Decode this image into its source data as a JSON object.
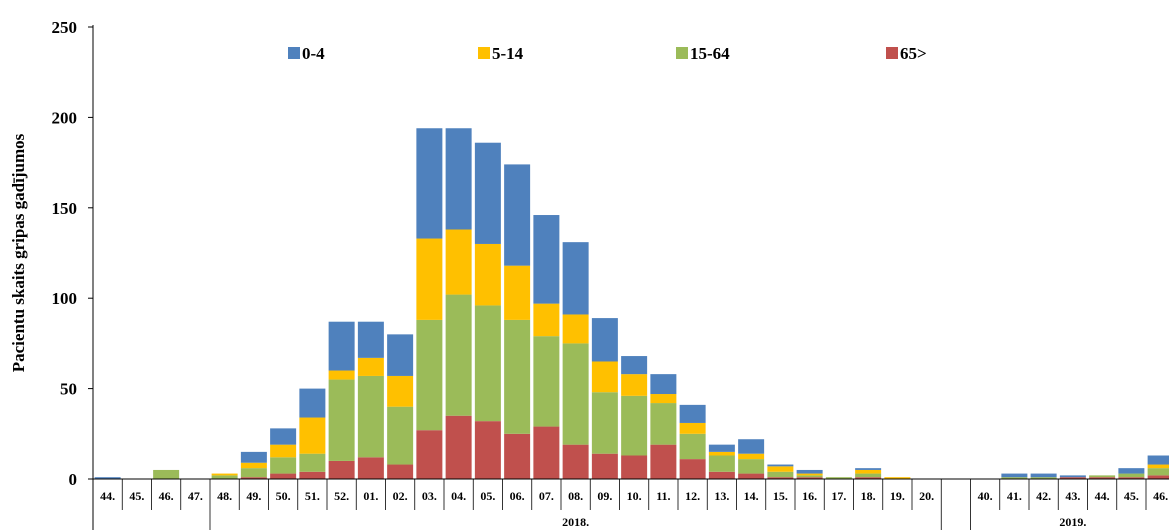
{
  "chart_data": {
    "type": "bar",
    "stacked": true,
    "title": "",
    "xlabel": "",
    "ylabel": "Pacientu skaits gripas gadījumos",
    "ylim": [
      0,
      250
    ],
    "yticks": [
      0,
      50,
      100,
      150,
      200,
      250
    ],
    "grid": false,
    "legend_position": "top",
    "categories": [
      "44.",
      "45.",
      "46.",
      "47.",
      "48.",
      "49.",
      "50.",
      "51.",
      "52.",
      "01.",
      "02.",
      "03.",
      "04.",
      "05.",
      "06.",
      "07.",
      "08.",
      "09.",
      "10.",
      "11.",
      "12.",
      "13.",
      "14.",
      "15.",
      "16.",
      "17.",
      "18.",
      "19.",
      "20.",
      "",
      "40.",
      "41.",
      "42.",
      "43.",
      "44.",
      "45.",
      "46."
    ],
    "year_groups": [
      {
        "label": "",
        "start": 0,
        "end": 3
      },
      {
        "label": "2018.",
        "start": 4,
        "end": 28
      },
      {
        "label": "2019.",
        "start": 30,
        "end": 36
      }
    ],
    "series": [
      {
        "name": "65>",
        "color": "#c0504d",
        "values": [
          0,
          0,
          0,
          0,
          0,
          1,
          3,
          4,
          10,
          12,
          8,
          27,
          35,
          32,
          25,
          29,
          19,
          14,
          13,
          19,
          11,
          4,
          3,
          1,
          1,
          0,
          1,
          0,
          0,
          0,
          0,
          0,
          0,
          1,
          1,
          1,
          2
        ]
      },
      {
        "name": "15-64",
        "color": "#9bbb59",
        "values": [
          0,
          0,
          5,
          0,
          2,
          5,
          9,
          10,
          45,
          45,
          32,
          61,
          67,
          64,
          63,
          50,
          56,
          34,
          33,
          23,
          14,
          9,
          8,
          3,
          1,
          1,
          2,
          0,
          0,
          0,
          0,
          1,
          1,
          0,
          1,
          2,
          4
        ]
      },
      {
        "name": "5-14",
        "color": "#ffc000",
        "values": [
          0,
          0,
          0,
          0,
          1,
          3,
          7,
          20,
          5,
          10,
          17,
          45,
          36,
          34,
          30,
          18,
          16,
          17,
          12,
          5,
          6,
          2,
          3,
          3,
          1,
          0,
          2,
          1,
          0,
          0,
          0,
          0,
          0,
          0,
          0,
          0,
          2
        ]
      },
      {
        "name": "0-4",
        "color": "#4f81bd",
        "values": [
          1,
          0,
          0,
          0,
          0,
          6,
          9,
          16,
          27,
          20,
          23,
          61,
          56,
          56,
          56,
          49,
          40,
          24,
          10,
          11,
          10,
          4,
          8,
          1,
          2,
          0,
          1,
          0,
          0,
          0,
          0,
          2,
          2,
          1,
          0,
          3,
          5
        ]
      }
    ],
    "legend_order": [
      "0-4",
      "5-14",
      "15-64",
      "65>"
    ]
  }
}
